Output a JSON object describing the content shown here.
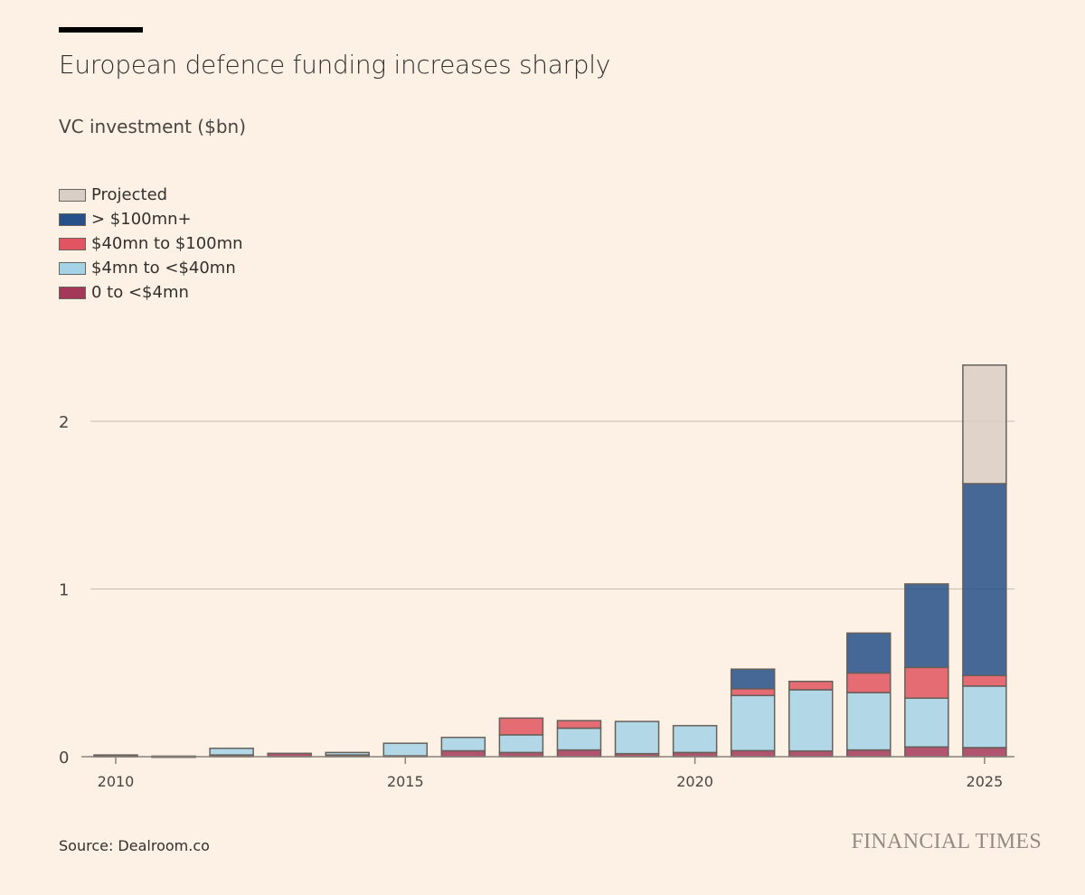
{
  "title": "European defence funding increases sharply",
  "subtitle": "VC investment ($bn)",
  "source": "Source: Dealroom.co",
  "logo": "FINANCIAL TIMES",
  "chart_data": {
    "type": "bar",
    "stacked": true,
    "categories": [
      2010,
      2011,
      2012,
      2013,
      2014,
      2015,
      2016,
      2017,
      2018,
      2019,
      2020,
      2021,
      2022,
      2023,
      2024,
      2025
    ],
    "series": [
      {
        "name": "0 to <$4mn",
        "color": "#a3385a",
        "values": [
          0.005,
          0.002,
          0.01,
          0.02,
          0.01,
          0.005,
          0.035,
          0.025,
          0.04,
          0.018,
          0.025,
          0.036,
          0.034,
          0.04,
          0.058,
          0.054
        ]
      },
      {
        "name": "$4mn to <$40mn",
        "color": "#a4d2e6",
        "values": [
          0.005,
          0.001,
          0.04,
          0,
          0.015,
          0.075,
          0.08,
          0.105,
          0.13,
          0.192,
          0.16,
          0.329,
          0.365,
          0.342,
          0.291,
          0.367
        ]
      },
      {
        "name": "$40mn to $100mn",
        "color": "#e25560",
        "values": [
          0,
          0,
          0,
          0,
          0,
          0,
          0,
          0.1,
          0.045,
          0,
          0,
          0.04,
          0.05,
          0.117,
          0.183,
          0.063
        ]
      },
      {
        "name": "> $100mn+",
        "color": "#26508a",
        "values": [
          0,
          0,
          0,
          0,
          0,
          0,
          0,
          0,
          0,
          0,
          0,
          0.117,
          0,
          0.238,
          0.498,
          1.144
        ]
      },
      {
        "name": "Projected",
        "color": "#d9cec5",
        "values": [
          0,
          0,
          0,
          0,
          0,
          0,
          0,
          0,
          0,
          0,
          0,
          0,
          0,
          0,
          0,
          0.707
        ]
      }
    ],
    "legend_order": [
      "Projected",
      "> $100mn+",
      "$40mn to $100mn",
      "$4mn to <$40mn",
      "0 to <$4mn"
    ],
    "legend_position": "top-left",
    "ylim": [
      0,
      2.4
    ],
    "yticks": [
      0,
      1,
      2
    ],
    "xticks": [
      2010,
      2015,
      2020,
      2025
    ],
    "grid": "horizontal",
    "xlabel": "",
    "ylabel": ""
  }
}
